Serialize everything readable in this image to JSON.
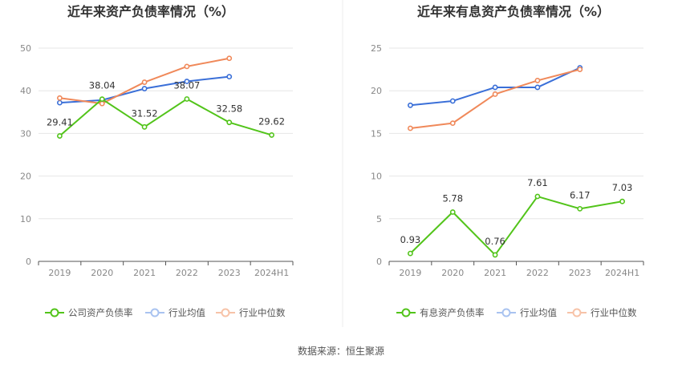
{
  "source_label": "数据来源：恒生聚源",
  "colors": {
    "company": "#52c41a",
    "avg": "#3a6fd8",
    "median": "#f0895a",
    "grid": "#e6e6e6",
    "axis": "#555555"
  },
  "chart_data": [
    {
      "type": "line",
      "title": "近年来资产负债率情况（%）",
      "categories": [
        "2019",
        "2020",
        "2021",
        "2022",
        "2023",
        "2024H1"
      ],
      "ylim": [
        0,
        50
      ],
      "yticks": [
        0,
        10,
        20,
        30,
        40,
        50
      ],
      "grid": true,
      "legend_position": "bottom",
      "series": [
        {
          "name": "公司资产负债率",
          "key": "company",
          "values": [
            29.41,
            38.04,
            31.52,
            38.07,
            32.58,
            29.62
          ],
          "labels": [
            "29.41",
            "38.04",
            "31.52",
            "38.07",
            "32.58",
            "29.62"
          ]
        },
        {
          "name": "行业均值",
          "key": "avg",
          "values": [
            37.2,
            37.8,
            40.5,
            42.2,
            43.3,
            null
          ]
        },
        {
          "name": "行业中位数",
          "key": "median",
          "values": [
            38.3,
            37.0,
            42.0,
            45.7,
            47.6,
            null
          ]
        }
      ]
    },
    {
      "type": "line",
      "title": "近年来有息资产负债率情况（%）",
      "categories": [
        "2019",
        "2020",
        "2021",
        "2022",
        "2023",
        "2024H1"
      ],
      "ylim": [
        0,
        25
      ],
      "yticks": [
        0,
        5,
        10,
        15,
        20,
        25
      ],
      "grid": true,
      "legend_position": "bottom",
      "series": [
        {
          "name": "有息资产负债率",
          "key": "company",
          "values": [
            0.93,
            5.78,
            0.76,
            7.61,
            6.17,
            7.03
          ],
          "labels": [
            "0.93",
            "5.78",
            "0.76",
            "7.61",
            "6.17",
            "7.03"
          ]
        },
        {
          "name": "行业均值",
          "key": "avg",
          "values": [
            18.3,
            18.8,
            20.4,
            20.4,
            22.7,
            null
          ]
        },
        {
          "name": "行业中位数",
          "key": "median",
          "values": [
            15.6,
            16.2,
            19.6,
            21.2,
            22.5,
            null
          ]
        }
      ]
    }
  ]
}
